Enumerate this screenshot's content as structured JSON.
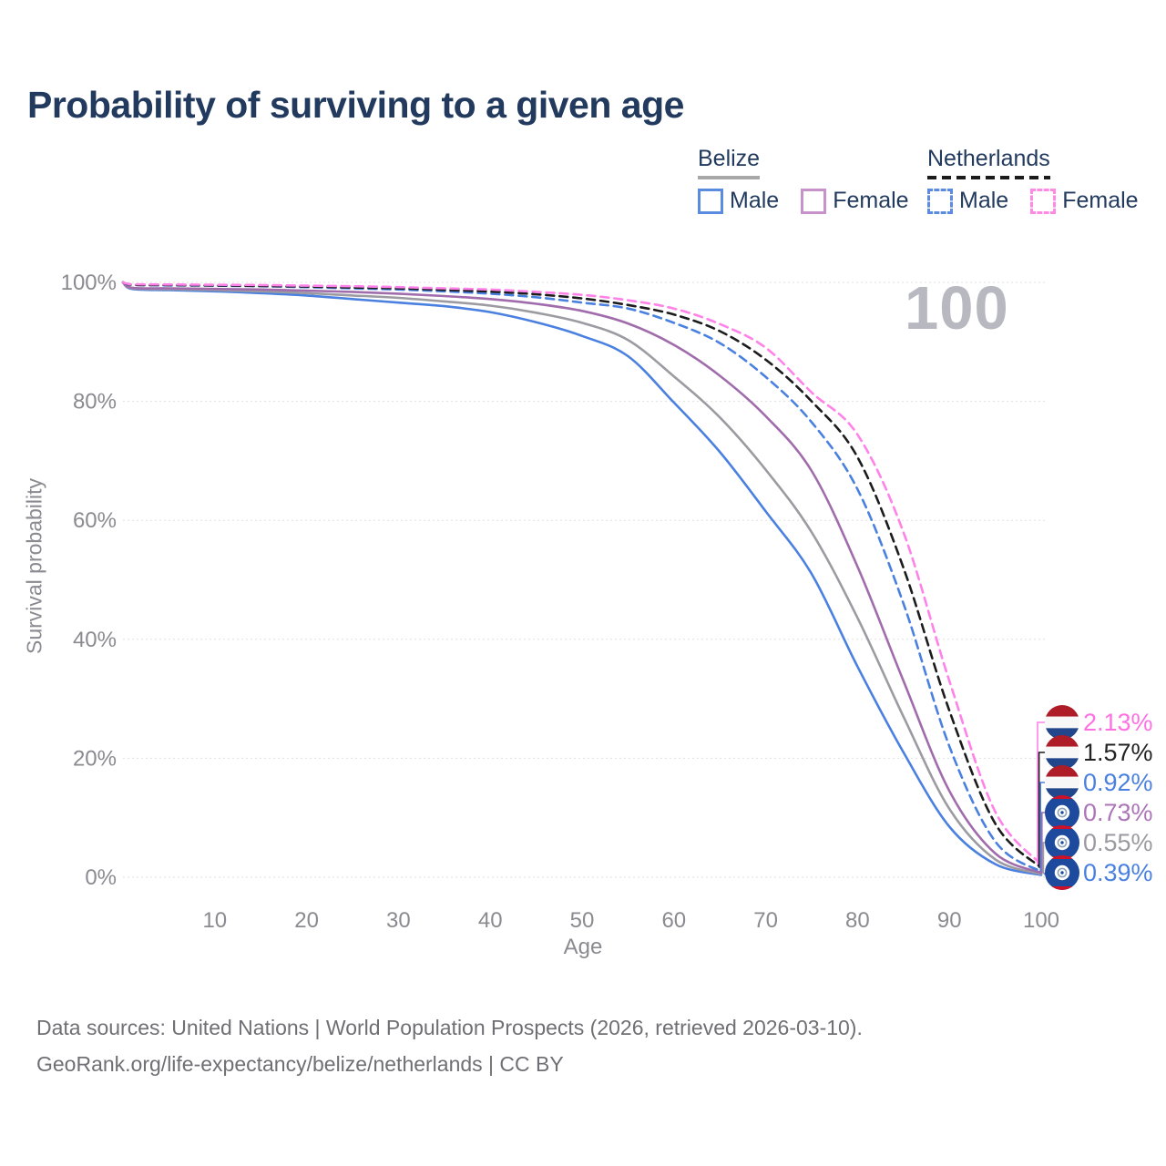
{
  "title": "Probability of surviving to a given age",
  "watermark": "100",
  "legend": {
    "belize": {
      "label": "Belize",
      "male": "Male",
      "female": "Female"
    },
    "netherlands": {
      "label": "Netherlands",
      "male": "Male",
      "female": "Female"
    }
  },
  "footer": {
    "line1": "Data sources: United Nations | World Population Prospects (2026, retrieved 2026-03-10).",
    "line2": "GeoRank.org/life-expectancy/belize/netherlands | CC BY"
  },
  "colors": {
    "title_text": "#223a5e",
    "axis_text": "#8a8a90",
    "grid": "#e0e0e4",
    "watermark": "#b8b8c0",
    "footer_text": "#6f6f74",
    "nl_flag_red": "#AE1C28",
    "nl_flag_white": "#f7f7f7",
    "nl_flag_blue": "#21468B",
    "bz_flag_blue": "#1d4a9c",
    "bz_flag_red": "#CE1126"
  },
  "chart_data": {
    "type": "line",
    "title": "Probability of surviving to a given age",
    "xlabel": "Age",
    "ylabel": "Survival probability",
    "xlim": [
      0,
      100
    ],
    "ylim": [
      0,
      100
    ],
    "x_ticks": [
      10,
      20,
      30,
      40,
      50,
      60,
      70,
      80,
      90,
      100
    ],
    "y_ticks": [
      "0%",
      "20%",
      "40%",
      "60%",
      "80%",
      "100%"
    ],
    "grid": "horizontal",
    "legend_position": "top-right",
    "hover_age": 100,
    "ages": [
      0,
      1,
      5,
      10,
      15,
      20,
      25,
      30,
      35,
      40,
      45,
      50,
      55,
      60,
      65,
      70,
      75,
      80,
      85,
      90,
      95,
      100
    ],
    "series": [
      {
        "id": "belize-male",
        "name": "Belize Male",
        "country": "Belize",
        "sex": "Male",
        "flag": "bz",
        "color": "#4a80e0",
        "dash": "none",
        "values": [
          100,
          98.9,
          98.7,
          98.5,
          98.2,
          97.8,
          97.2,
          96.6,
          96.0,
          95.0,
          93.3,
          91.0,
          87.6,
          79.8,
          71.5,
          61.5,
          51.0,
          35.4,
          21.0,
          8.5,
          2.2,
          0.39
        ],
        "end_value": 0.39,
        "end_label": "0.39%",
        "label_color": "#4a80e0"
      },
      {
        "id": "belize-both",
        "name": "Belize Both sexes",
        "country": "Belize",
        "sex": "Both",
        "flag": "bz",
        "color": "#9b9ba1",
        "dash": "none",
        "values": [
          100,
          99.0,
          98.85,
          98.7,
          98.5,
          98.2,
          97.8,
          97.4,
          96.8,
          96.1,
          94.9,
          93.2,
          90.3,
          84.2,
          77.3,
          68.5,
          58.0,
          43.6,
          27.0,
          11.5,
          3.0,
          0.55
        ],
        "end_value": 0.55,
        "end_label": "0.55%",
        "label_color": "#9a9aa0"
      },
      {
        "id": "belize-female",
        "name": "Belize Female",
        "country": "Belize",
        "sex": "Female",
        "flag": "bz",
        "color": "#a06cab",
        "dash": "none",
        "values": [
          100,
          99.1,
          99.0,
          98.9,
          98.8,
          98.6,
          98.4,
          98.1,
          97.7,
          97.2,
          96.4,
          95.2,
          93.1,
          89.5,
          84.3,
          77.5,
          68.3,
          52.2,
          33.0,
          14.5,
          4.0,
          0.73
        ],
        "end_value": 0.73,
        "end_label": "0.73%",
        "label_color": "#ad74b8"
      },
      {
        "id": "netherlands-male",
        "name": "Netherlands Male",
        "country": "Netherlands",
        "sex": "Male",
        "flag": "nl",
        "color": "#4a80e0",
        "dash": "9 6",
        "values": [
          100,
          99.6,
          99.5,
          99.45,
          99.35,
          99.2,
          99.0,
          98.8,
          98.5,
          98.1,
          97.5,
          96.6,
          95.6,
          93.2,
          89.8,
          84.1,
          76.5,
          65.2,
          46.0,
          22.0,
          6.0,
          0.92
        ],
        "end_value": 0.92,
        "end_label": "0.92%",
        "label_color": "#4a80e0"
      },
      {
        "id": "netherlands-both",
        "name": "Netherlands Both sexes",
        "country": "Netherlands",
        "sex": "Both",
        "flag": "nl",
        "color": "#1c1c1c",
        "dash": "9 6",
        "values": [
          100,
          99.6,
          99.55,
          99.5,
          99.4,
          99.3,
          99.15,
          99.0,
          98.75,
          98.45,
          98.0,
          97.3,
          96.2,
          94.6,
          91.8,
          87.0,
          80.0,
          70.6,
          52.0,
          28.0,
          9.0,
          1.57
        ],
        "end_value": 1.57,
        "end_label": "1.57%",
        "label_color": "#232323"
      },
      {
        "id": "netherlands-female",
        "name": "Netherlands Female",
        "country": "Netherlands",
        "sex": "Female",
        "flag": "nl",
        "color": "#ff82e9",
        "dash": "9 6",
        "values": [
          100,
          99.7,
          99.65,
          99.6,
          99.55,
          99.45,
          99.35,
          99.2,
          99.0,
          98.8,
          98.4,
          97.9,
          97.0,
          95.6,
          93.0,
          89.0,
          81.5,
          74.4,
          58.0,
          33.0,
          11.0,
          2.13
        ],
        "end_value": 2.13,
        "end_label": "2.13%",
        "label_color": "#ff70e2"
      }
    ]
  }
}
